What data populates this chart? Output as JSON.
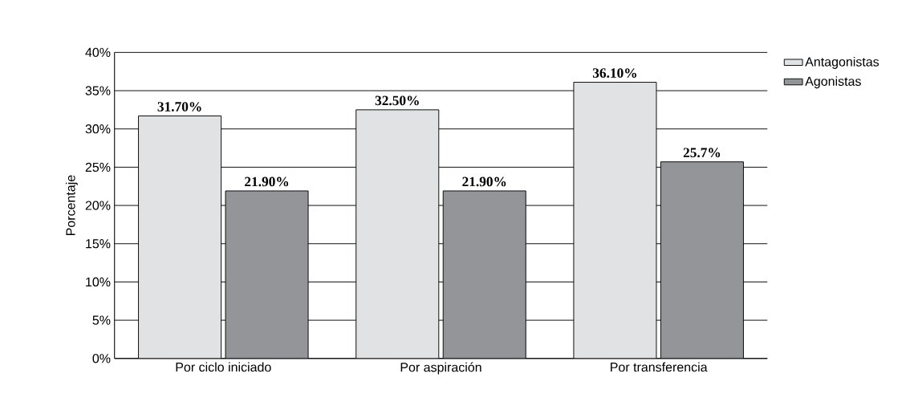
{
  "chart_data": {
    "type": "bar",
    "ylabel": "Porcentaje",
    "categories": [
      "Por ciclo iniciado",
      "Por aspiración",
      "Por transferencia"
    ],
    "series": [
      {
        "name": "Antagonistas",
        "color": "#e1e2e3",
        "values": [
          31.7,
          32.5,
          36.1
        ],
        "value_labels": [
          "31.70%",
          "32.50%",
          "36.10%"
        ]
      },
      {
        "name": "Agonistas",
        "color": "#939598",
        "values": [
          21.9,
          21.9,
          25.7
        ],
        "value_labels": [
          "21.90%",
          "21.90%",
          "25.7%"
        ]
      }
    ],
    "ylim": [
      0,
      40
    ],
    "yticks": [
      {
        "value": 0,
        "label": "0%"
      },
      {
        "value": 5,
        "label": "5%"
      },
      {
        "value": 10,
        "label": "10%"
      },
      {
        "value": 15,
        "label": "15%"
      },
      {
        "value": 20,
        "label": "20%"
      },
      {
        "value": 25,
        "label": "25%"
      },
      {
        "value": 30,
        "label": "30%"
      },
      {
        "value": 35,
        "label": "35%"
      },
      {
        "value": 40,
        "label": "40%"
      }
    ],
    "grid": "y",
    "legend": "top right"
  }
}
